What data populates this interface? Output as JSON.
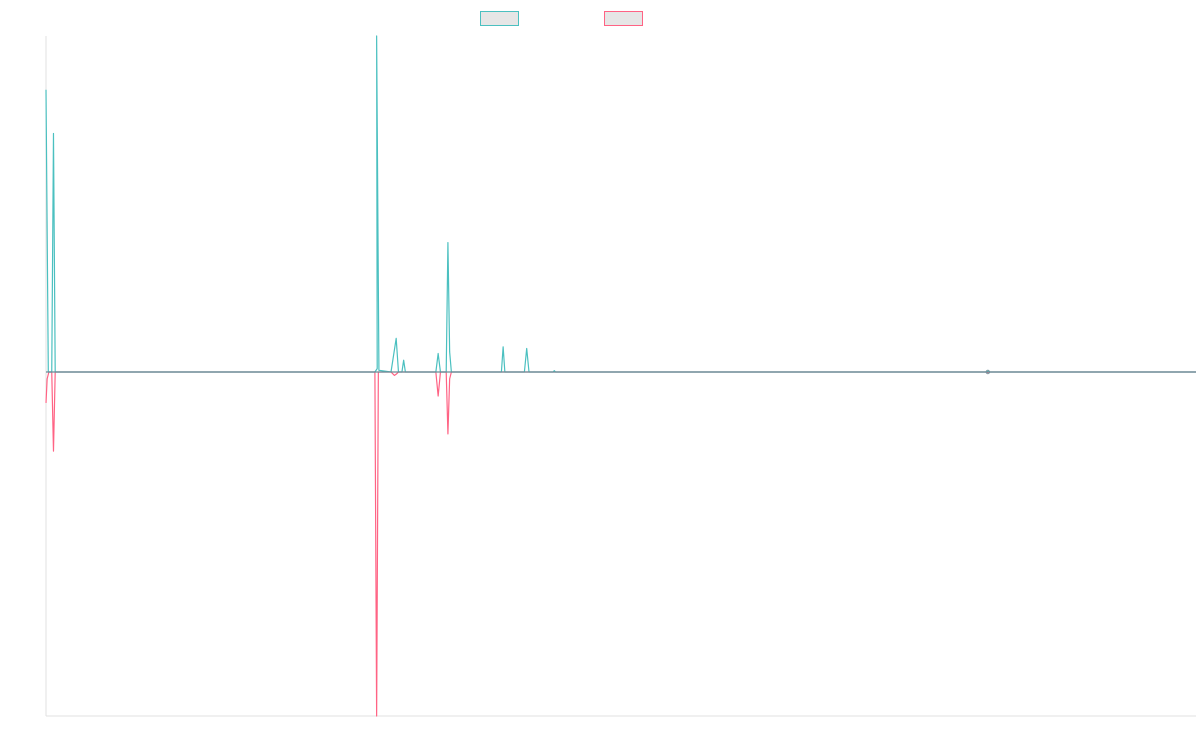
{
  "chart_data": {
    "type": "line",
    "title": "",
    "xlabel": "",
    "ylabel": "",
    "xlim": [
      0,
      1000
    ],
    "ylim": [
      -1,
      1
    ],
    "grid": false,
    "legend_position": "top-center",
    "series": [
      {
        "label": "",
        "color": "#4bc0c0",
        "points": [
          {
            "x": 0,
            "y": 0.84
          },
          {
            "x": 2,
            "y": 0
          },
          {
            "x": 5,
            "y": 0
          },
          {
            "x": 6.5,
            "y": 0.71
          },
          {
            "x": 8,
            "y": 0
          },
          {
            "x": 286,
            "y": 0
          },
          {
            "x": 288,
            "y": 0.01
          },
          {
            "x": 287.5,
            "y": 1.0
          },
          {
            "x": 289.5,
            "y": 0.005
          },
          {
            "x": 300,
            "y": 0
          },
          {
            "x": 304.5,
            "y": 0.1
          },
          {
            "x": 306.5,
            "y": 0
          },
          {
            "x": 309.5,
            "y": 0
          },
          {
            "x": 311,
            "y": 0.035
          },
          {
            "x": 312.5,
            "y": 0
          },
          {
            "x": 339,
            "y": 0
          },
          {
            "x": 341,
            "y": 0.055
          },
          {
            "x": 343,
            "y": 0
          },
          {
            "x": 348,
            "y": 0
          },
          {
            "x": 349.5,
            "y": 0.385
          },
          {
            "x": 351,
            "y": 0.06
          },
          {
            "x": 352.5,
            "y": 0
          },
          {
            "x": 396,
            "y": 0
          },
          {
            "x": 397.5,
            "y": 0.075
          },
          {
            "x": 399,
            "y": 0
          },
          {
            "x": 416,
            "y": 0
          },
          {
            "x": 418,
            "y": 0.07
          },
          {
            "x": 420,
            "y": 0
          },
          {
            "x": 441,
            "y": 0
          },
          {
            "x": 442,
            "y": 0.004
          },
          {
            "x": 443,
            "y": 0
          },
          {
            "x": 818,
            "y": 0
          },
          {
            "x": 819,
            "y": 0.002
          },
          {
            "x": 820,
            "y": 0
          },
          {
            "x": 1000,
            "y": 0
          }
        ]
      },
      {
        "label": "",
        "color": "#ff6384",
        "points": [
          {
            "x": 0,
            "y": -0.09
          },
          {
            "x": 1,
            "y": -0.02
          },
          {
            "x": 2.5,
            "y": 0
          },
          {
            "x": 5,
            "y": 0
          },
          {
            "x": 6.5,
            "y": -0.23
          },
          {
            "x": 8,
            "y": 0
          },
          {
            "x": 286,
            "y": 0
          },
          {
            "x": 287.5,
            "y": -1.0
          },
          {
            "x": 289,
            "y": 0
          },
          {
            "x": 300,
            "y": 0
          },
          {
            "x": 303,
            "y": -0.01
          },
          {
            "x": 305,
            "y": -0.005
          },
          {
            "x": 306.5,
            "y": 0
          },
          {
            "x": 339,
            "y": 0
          },
          {
            "x": 341,
            "y": -0.07
          },
          {
            "x": 343,
            "y": 0
          },
          {
            "x": 348,
            "y": 0
          },
          {
            "x": 349.5,
            "y": -0.18
          },
          {
            "x": 351,
            "y": -0.02
          },
          {
            "x": 352.5,
            "y": 0
          },
          {
            "x": 818,
            "y": 0
          },
          {
            "x": 819,
            "y": -0.002
          },
          {
            "x": 820,
            "y": 0
          },
          {
            "x": 1000,
            "y": 0
          }
        ]
      }
    ],
    "axis_color": "#e0e0e0",
    "baseline_color": "#6a8c96"
  }
}
